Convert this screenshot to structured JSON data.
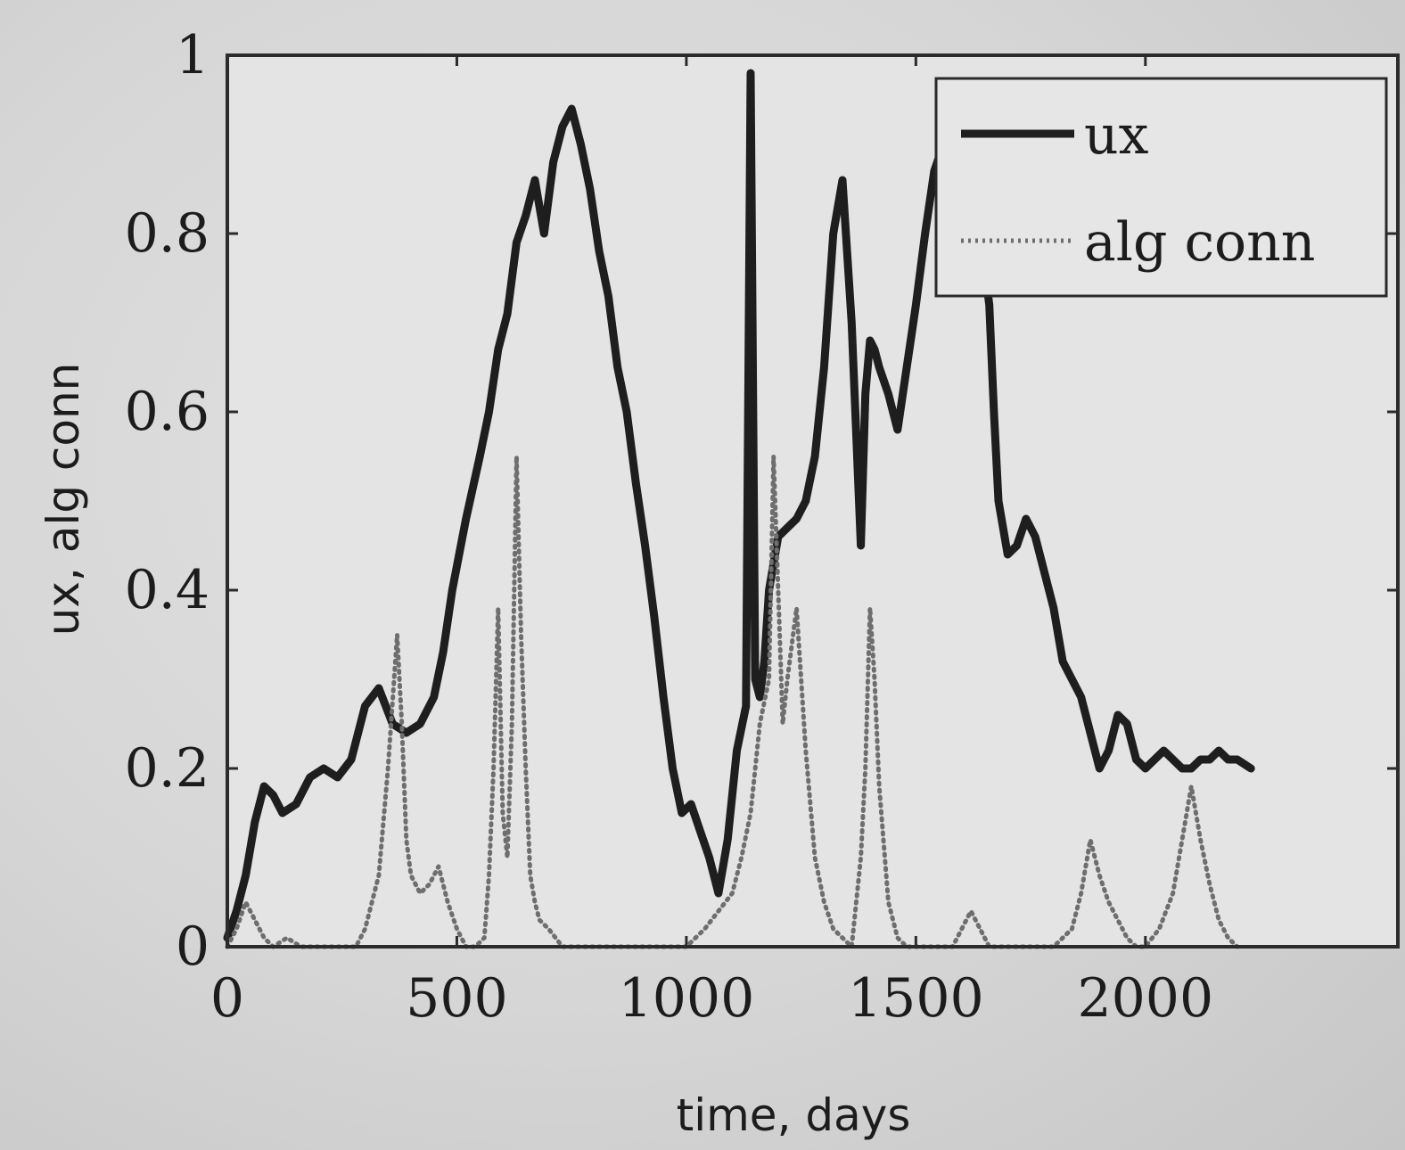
{
  "chart_data": {
    "type": "line",
    "xlabel": "time, days",
    "ylabel": "ux, alg conn",
    "xlim": [
      0,
      2550
    ],
    "ylim": [
      0,
      1
    ],
    "x_ticks": [
      "0",
      "500",
      "1000",
      "1500",
      "2000"
    ],
    "y_ticks": [
      "0",
      "0.2",
      "0.4",
      "0.6",
      "0.8",
      "1"
    ],
    "legend_position": "top-right",
    "grid": false,
    "series": [
      {
        "name": "ux",
        "style": "solid",
        "color": "#1e1e1e",
        "x": [
          0,
          20,
          40,
          60,
          80,
          100,
          120,
          150,
          180,
          210,
          240,
          270,
          300,
          330,
          360,
          390,
          420,
          450,
          470,
          490,
          520,
          550,
          570,
          590,
          610,
          630,
          650,
          670,
          690,
          710,
          730,
          750,
          770,
          790,
          810,
          830,
          850,
          870,
          890,
          910,
          930,
          950,
          970,
          990,
          1010,
          1030,
          1050,
          1070,
          1090,
          1110,
          1130,
          1140,
          1150,
          1160,
          1170,
          1180,
          1200,
          1220,
          1240,
          1260,
          1280,
          1300,
          1320,
          1340,
          1360,
          1380,
          1390,
          1400,
          1410,
          1420,
          1440,
          1460,
          1480,
          1500,
          1520,
          1540,
          1560,
          1580,
          1600,
          1620,
          1640,
          1660,
          1670,
          1680,
          1700,
          1720,
          1740,
          1760,
          1780,
          1800,
          1820,
          1840,
          1860,
          1880,
          1900,
          1920,
          1940,
          1960,
          1980,
          2000,
          2020,
          2040,
          2060,
          2080,
          2100,
          2120,
          2140,
          2160,
          2180,
          2200,
          2230
        ],
        "y": [
          0.01,
          0.04,
          0.08,
          0.14,
          0.18,
          0.17,
          0.15,
          0.16,
          0.19,
          0.2,
          0.19,
          0.21,
          0.27,
          0.29,
          0.25,
          0.24,
          0.25,
          0.28,
          0.33,
          0.4,
          0.48,
          0.55,
          0.6,
          0.67,
          0.71,
          0.79,
          0.82,
          0.86,
          0.8,
          0.88,
          0.92,
          0.94,
          0.9,
          0.85,
          0.78,
          0.73,
          0.65,
          0.6,
          0.52,
          0.45,
          0.37,
          0.28,
          0.2,
          0.15,
          0.16,
          0.13,
          0.1,
          0.06,
          0.12,
          0.22,
          0.27,
          0.98,
          0.3,
          0.28,
          0.32,
          0.4,
          0.46,
          0.47,
          0.48,
          0.5,
          0.55,
          0.65,
          0.8,
          0.86,
          0.7,
          0.45,
          0.62,
          0.68,
          0.67,
          0.65,
          0.62,
          0.58,
          0.65,
          0.72,
          0.8,
          0.87,
          0.9,
          0.88,
          0.85,
          0.83,
          0.8,
          0.72,
          0.6,
          0.5,
          0.44,
          0.45,
          0.48,
          0.46,
          0.42,
          0.38,
          0.32,
          0.3,
          0.28,
          0.24,
          0.2,
          0.22,
          0.26,
          0.25,
          0.21,
          0.2,
          0.21,
          0.22,
          0.21,
          0.2,
          0.2,
          0.21,
          0.21,
          0.22,
          0.21,
          0.21,
          0.2
        ]
      },
      {
        "name": "alg conn",
        "style": "dotted",
        "color": "#6e6e6e",
        "x": [
          0,
          20,
          40,
          60,
          80,
          100,
          130,
          160,
          200,
          240,
          280,
          300,
          330,
          350,
          370,
          380,
          390,
          400,
          420,
          440,
          460,
          480,
          500,
          520,
          540,
          560,
          570,
          580,
          590,
          600,
          610,
          620,
          630,
          640,
          650,
          660,
          670,
          680,
          700,
          730,
          760,
          800,
          850,
          900,
          950,
          1000,
          1040,
          1070,
          1100,
          1120,
          1140,
          1160,
          1180,
          1190,
          1200,
          1210,
          1220,
          1240,
          1260,
          1280,
          1300,
          1320,
          1340,
          1360,
          1380,
          1390,
          1400,
          1410,
          1420,
          1440,
          1460,
          1480,
          1500,
          1540,
          1580,
          1600,
          1620,
          1640,
          1660,
          1700,
          1760,
          1800,
          1840,
          1860,
          1880,
          1900,
          1920,
          1940,
          1960,
          1980,
          2000,
          2030,
          2060,
          2080,
          2100,
          2120,
          2140,
          2160,
          2180,
          2200
        ],
        "y": [
          0.0,
          0.02,
          0.05,
          0.03,
          0.01,
          0.0,
          0.01,
          0.0,
          0.0,
          0.0,
          0.0,
          0.02,
          0.08,
          0.2,
          0.35,
          0.25,
          0.12,
          0.08,
          0.06,
          0.07,
          0.09,
          0.05,
          0.02,
          0.0,
          0.0,
          0.01,
          0.08,
          0.2,
          0.38,
          0.15,
          0.1,
          0.25,
          0.55,
          0.35,
          0.2,
          0.08,
          0.05,
          0.03,
          0.02,
          0.0,
          0.0,
          0.0,
          0.0,
          0.0,
          0.0,
          0.0,
          0.02,
          0.04,
          0.06,
          0.1,
          0.15,
          0.25,
          0.3,
          0.55,
          0.4,
          0.25,
          0.3,
          0.38,
          0.22,
          0.1,
          0.05,
          0.02,
          0.01,
          0.0,
          0.1,
          0.2,
          0.38,
          0.3,
          0.18,
          0.05,
          0.01,
          0.0,
          0.0,
          0.0,
          0.0,
          0.02,
          0.04,
          0.02,
          0.0,
          0.0,
          0.0,
          0.0,
          0.02,
          0.06,
          0.12,
          0.08,
          0.05,
          0.03,
          0.01,
          0.0,
          0.0,
          0.02,
          0.06,
          0.12,
          0.18,
          0.12,
          0.07,
          0.03,
          0.01,
          0.0
        ]
      }
    ]
  }
}
